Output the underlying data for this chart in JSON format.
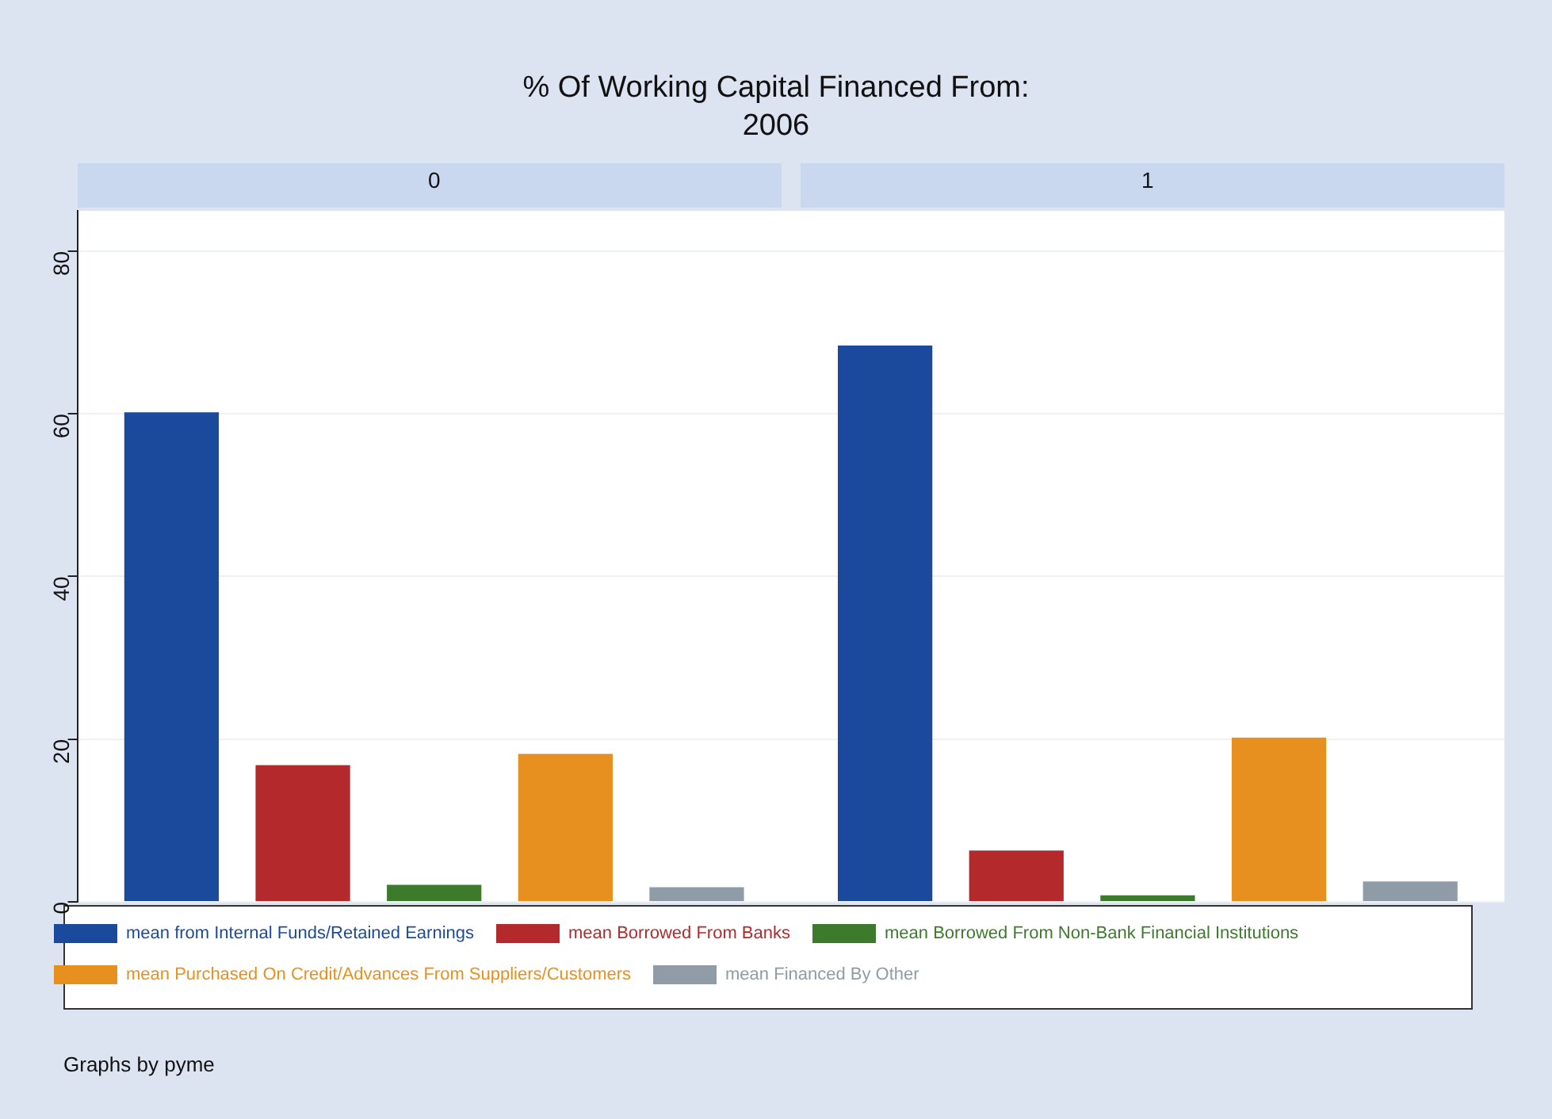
{
  "chart_data": {
    "type": "bar",
    "title": "% Of Working Capital Financed From:",
    "subtitle": "2006",
    "categories": [
      "0",
      "1"
    ],
    "series": [
      {
        "name": "mean from Internal Funds/Retained Earnings",
        "color": "#1b4a9c",
        "values": [
          60.2,
          68.4
        ]
      },
      {
        "name": "mean Borrowed From Banks",
        "color": "#b3292c",
        "values": [
          16.8,
          6.3
        ]
      },
      {
        "name": "mean Borrowed From Non-Bank Financial Institutions",
        "color": "#3d7a2c",
        "values": [
          2.1,
          0.8
        ]
      },
      {
        "name": "mean Purchased On Credit/Advances From Suppliers/Customers",
        "color": "#e8901f",
        "values": [
          18.2,
          20.2
        ]
      },
      {
        "name": "mean Financed By Other",
        "color": "#8f9ba6",
        "values": [
          1.8,
          2.5
        ]
      }
    ],
    "ylim": [
      0,
      85
    ],
    "yticks": [
      0,
      20,
      40,
      60,
      80
    ],
    "grid": "y",
    "legend": "bottom",
    "annotations": [
      "Graphs by pyme"
    ]
  }
}
